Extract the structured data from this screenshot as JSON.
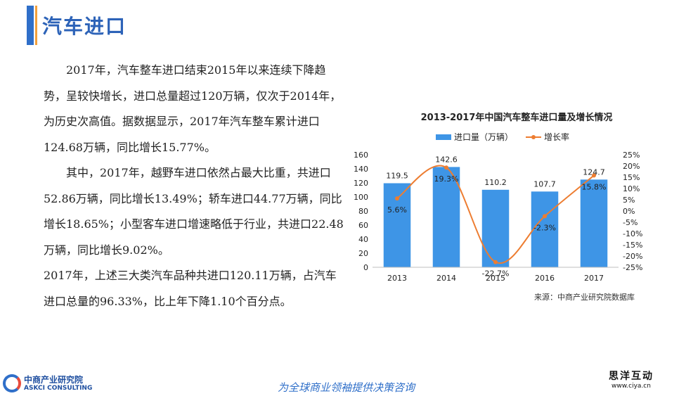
{
  "title": "汽车进口",
  "paragraphs": [
    "2017年，汽车整车进口结束2015年以来连续下降趋势，呈较快增长，进口总量超过120万辆，仅次于2014年，为历史次高值。据数据显示，2017年汽车整车累计进口124.68万辆，同比增长15.77%。",
    "其中，2017年，越野车进口依然占最大比重，共进口52.86万辆，同比增长13.49%；轿车进口44.77万辆，同比增长18.65%；小型客车进口增速略低于行业，共进口22.48万辆，同比增长9.02%。",
    "2017年，上述三大类汽车品种共进口120.11万辆，占汽车进口总量的96.33%，比上年下降1.10个百分点。"
  ],
  "chart_data": {
    "type": "bar",
    "title": "2013-2017年中国汽车整车进口量及增长情况",
    "categories": [
      "2013",
      "2014",
      "2015",
      "2016",
      "2017"
    ],
    "series": [
      {
        "name": "进口量（万辆）",
        "type": "bar",
        "axis": "left",
        "color": "#3e95e6",
        "values": [
          119.5,
          142.6,
          110.2,
          107.7,
          124.7
        ],
        "labels": [
          "119.5",
          "142.6",
          "110.2",
          "107.7",
          "124.7"
        ]
      },
      {
        "name": "增长率",
        "type": "line",
        "axis": "right",
        "color": "#ed7d31",
        "values": [
          5.6,
          19.3,
          -22.7,
          -2.3,
          15.8
        ],
        "labels": [
          "5.6%",
          "19.3%",
          "-22.7%",
          "-2.3%",
          "15.8%"
        ]
      }
    ],
    "ylim_left": [
      0,
      160
    ],
    "yticks_left": [
      "0",
      "20",
      "40",
      "60",
      "80",
      "100",
      "120",
      "140",
      "160"
    ],
    "ylim_right": [
      -25,
      25
    ],
    "yticks_right": [
      "-25%",
      "-20%",
      "-15%",
      "-10%",
      "-5%",
      "0%",
      "5%",
      "10%",
      "15%",
      "20%",
      "25%"
    ],
    "legend": {
      "position": "top",
      "items": [
        "进口量（万辆）",
        "增长率"
      ]
    },
    "source": "来源：中商产业研究院数据库"
  },
  "footer": {
    "logo_cn": "中商产业研究院",
    "logo_en": "ASKCI CONSULTING",
    "slogan": "为全球商业领袖提供决策咨询",
    "watermark_cn": "思洋互动",
    "watermark_url": "www.ciya.cn"
  }
}
